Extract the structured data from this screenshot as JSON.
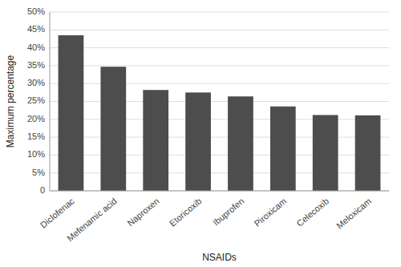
{
  "chart_data": {
    "type": "bar",
    "categories": [
      "Diclofenac",
      "Mefenamic acid",
      "Naproxen",
      "Etoricoxib",
      "Ibuprofen",
      "Piroxicam",
      "Celecoxib",
      "Meloxicam"
    ],
    "values": [
      43.5,
      34.7,
      28.2,
      27.5,
      26.4,
      23.6,
      21.2,
      21.1
    ],
    "color": "#4d4d4d",
    "xlabel": "NSAIDs",
    "ylabel": "Maximum percentage",
    "ylim": [
      0,
      50
    ],
    "yticks": [
      0,
      {
        "value": 5,
        "label": "5%"
      },
      {
        "value": 10,
        "label": "10%"
      },
      {
        "value": 15,
        "label": "15%"
      },
      {
        "value": 20,
        "label": "20%"
      },
      {
        "value": 25,
        "label": "25%"
      },
      {
        "value": 30,
        "label": "30%"
      },
      {
        "value": 35,
        "label": "35%"
      },
      {
        "value": 40,
        "label": "40%"
      },
      {
        "value": 45,
        "label": "45%"
      },
      {
        "value": 50,
        "label": "50%"
      }
    ],
    "grid": true
  }
}
